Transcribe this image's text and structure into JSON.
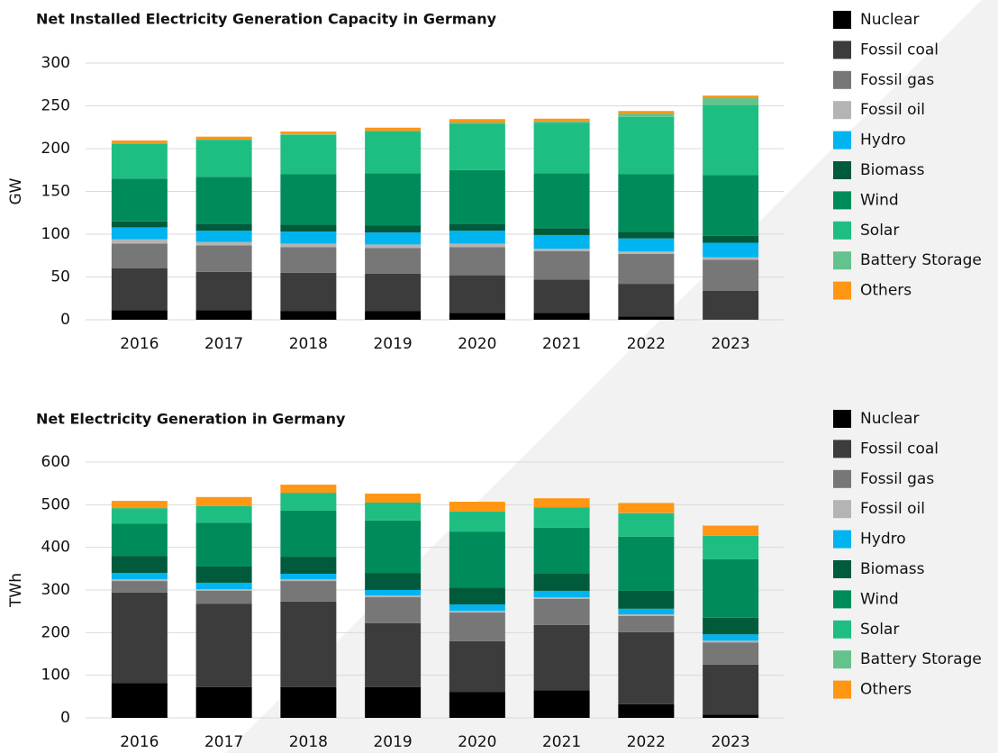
{
  "chart_data": [
    {
      "type": "bar",
      "stacked": true,
      "title": "Net Installed Electricity Generation Capacity in Germany",
      "y_label": "GW",
      "categories": [
        "2016",
        "2017",
        "2018",
        "2019",
        "2020",
        "2021",
        "2022",
        "2023"
      ],
      "ylim": [
        0,
        300
      ],
      "yticks": [
        0,
        50,
        100,
        150,
        200,
        250,
        300
      ],
      "grid": true,
      "series": [
        {
          "name": "Nuclear",
          "color": "#000000",
          "values": [
            11,
            11,
            10,
            10,
            8,
            8,
            4,
            0
          ]
        },
        {
          "name": "Fossil coal",
          "color": "#3c3c3c",
          "values": [
            49,
            45,
            45,
            44,
            44,
            39,
            38,
            34
          ]
        },
        {
          "name": "Fossil gas",
          "color": "#777777",
          "values": [
            29,
            31,
            30,
            30,
            33,
            33,
            35,
            36
          ]
        },
        {
          "name": "Fossil oil",
          "color": "#b4b4b4",
          "values": [
            5,
            4,
            4,
            4,
            4,
            3,
            3,
            3
          ]
        },
        {
          "name": "Hydro",
          "color": "#00b4f0",
          "values": [
            14,
            13,
            14,
            14,
            15,
            16,
            15,
            17
          ]
        },
        {
          "name": "Biomass",
          "color": "#005a3c",
          "values": [
            7,
            8,
            8,
            8,
            8,
            8,
            8,
            8
          ]
        },
        {
          "name": "Wind",
          "color": "#008c5a",
          "values": [
            50,
            55,
            59,
            61,
            63,
            64,
            67,
            71
          ]
        },
        {
          "name": "Solar",
          "color": "#1ebe82",
          "values": [
            41,
            43,
            46,
            49,
            54,
            59,
            67,
            82
          ]
        },
        {
          "name": "Battery Storage",
          "color": "#64c38c",
          "values": [
            0.5,
            0.5,
            1,
            1,
            1.5,
            2,
            4,
            8
          ]
        },
        {
          "name": "Others",
          "color": "#ff9614",
          "values": [
            3,
            3.5,
            3,
            3.5,
            4,
            3,
            3,
            3
          ]
        }
      ]
    },
    {
      "type": "bar",
      "stacked": true,
      "title": "Net Electricity Generation in Germany",
      "y_label": "TWh",
      "categories": [
        "2016",
        "2017",
        "2018",
        "2019",
        "2020",
        "2021",
        "2022",
        "2023"
      ],
      "ylim": [
        0,
        600
      ],
      "yticks": [
        0,
        100,
        200,
        300,
        400,
        500,
        600
      ],
      "grid": true,
      "series": [
        {
          "name": "Nuclear",
          "color": "#000000",
          "values": [
            82,
            72,
            72,
            72,
            61,
            65,
            32,
            8
          ]
        },
        {
          "name": "Fossil coal",
          "color": "#3c3c3c",
          "values": [
            212,
            196,
            201,
            150,
            119,
            153,
            169,
            117
          ]
        },
        {
          "name": "Fossil gas",
          "color": "#777777",
          "values": [
            27,
            30,
            48,
            61,
            67,
            61,
            38,
            52
          ]
        },
        {
          "name": "Fossil oil",
          "color": "#b4b4b4",
          "values": [
            4,
            4,
            4,
            4,
            4,
            4,
            4,
            4
          ]
        },
        {
          "name": "Hydro",
          "color": "#00b4f0",
          "values": [
            15,
            15,
            13,
            13,
            15,
            15,
            13,
            15
          ]
        },
        {
          "name": "Biomass",
          "color": "#005a3c",
          "values": [
            40,
            38,
            40,
            40,
            40,
            40,
            42,
            39
          ]
        },
        {
          "name": "Wind",
          "color": "#008c5a",
          "values": [
            76,
            103,
            108,
            123,
            131,
            108,
            127,
            137
          ]
        },
        {
          "name": "Solar",
          "color": "#1ebe82",
          "values": [
            36,
            39,
            42,
            42,
            47,
            48,
            55,
            55
          ]
        },
        {
          "name": "Battery Storage",
          "color": "#64c38c",
          "values": [
            0,
            0,
            0,
            0,
            0,
            0,
            1,
            1
          ]
        },
        {
          "name": "Others",
          "color": "#ff9614",
          "values": [
            17,
            21,
            19,
            21,
            23,
            21,
            23,
            23
          ]
        }
      ]
    }
  ]
}
